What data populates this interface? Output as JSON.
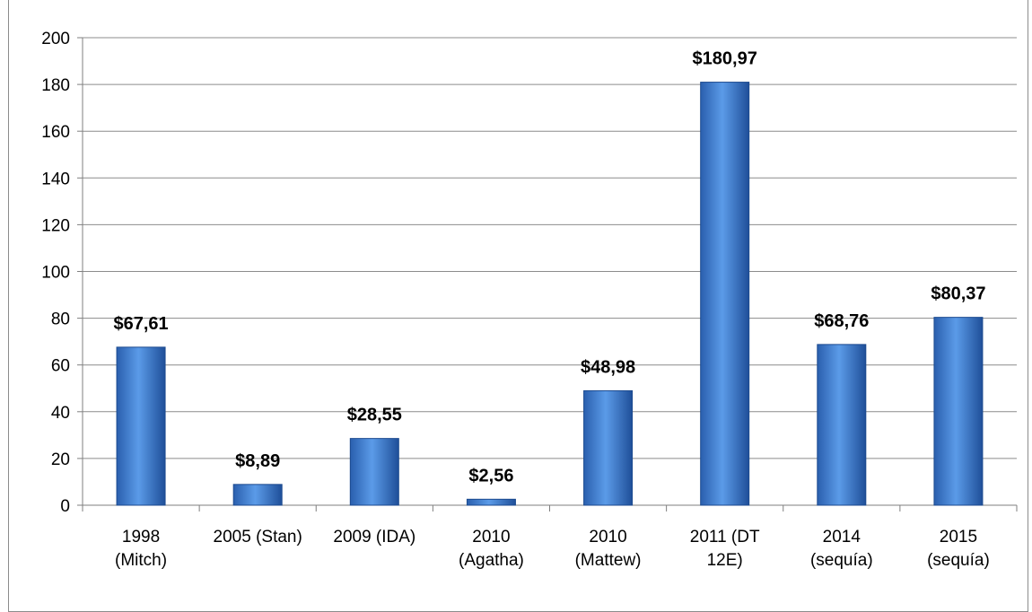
{
  "chart_data": {
    "type": "bar",
    "title": "",
    "xlabel": "",
    "ylabel": "",
    "categories": [
      [
        "1998",
        "(Mitch)"
      ],
      [
        "2005 (Stan)"
      ],
      [
        "2009 (IDA)"
      ],
      [
        "2010",
        "(Agatha)"
      ],
      [
        "2010",
        "(Mattew)"
      ],
      [
        "2011 (DT",
        "12E)"
      ],
      [
        "2014",
        "(sequía)"
      ],
      [
        "2015",
        "(sequía)"
      ]
    ],
    "values": [
      67.61,
      8.89,
      28.55,
      2.56,
      48.98,
      180.97,
      68.76,
      80.37
    ],
    "data_labels": [
      "$67,61",
      "$8,89",
      "$28,55",
      "$2,56",
      "$48,98",
      "$180,97",
      "$68,76",
      "$80,37"
    ],
    "ylim": [
      0,
      200
    ],
    "yticks": [
      0,
      20,
      40,
      60,
      80,
      100,
      120,
      140,
      160,
      180,
      200
    ],
    "grid": true,
    "legend": "none",
    "colors": {
      "bar_light": "#5b9be8",
      "bar_dark": "#1f4f99",
      "grid": "#8c8c8c",
      "axis": "#7f7f7f"
    }
  }
}
